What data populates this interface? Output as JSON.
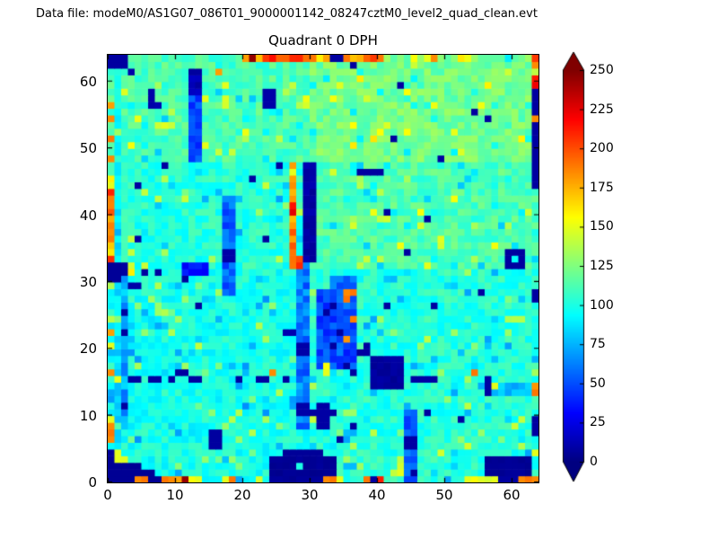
{
  "figure": {
    "header": "Data file: modeM0/AS1G07_086T01_9000001142_08247cztM0_level2_quad_clean.evt",
    "title": "Quadrant 0 DPH"
  },
  "chart_data": {
    "type": "heatmap",
    "title": "Quadrant 0 DPH",
    "grid": {
      "nx": 64,
      "ny": 64
    },
    "xlim": [
      0,
      64
    ],
    "ylim": [
      0,
      64
    ],
    "x_ticks": [
      0,
      10,
      20,
      30,
      40,
      50,
      60
    ],
    "y_ticks": [
      0,
      10,
      20,
      30,
      40,
      50,
      60
    ],
    "colormap": "jet",
    "colorbar": {
      "vmin": 0,
      "vmax": 250,
      "ticks": [
        0,
        25,
        50,
        75,
        100,
        125,
        150,
        175,
        200,
        225,
        250
      ],
      "extend": "both"
    },
    "background": {
      "seed": 1337,
      "base": 103,
      "noise": 22,
      "speck_low_delta": -22,
      "speck_high_delta": 32,
      "top_band_y": 48,
      "top_band_delta": 9,
      "upper_right": {
        "x": 30,
        "y": 32,
        "delta": 10
      },
      "lower_left_delta": -4,
      "col1_delta": -12
    },
    "features": [
      [
        17,
        28,
        2,
        15,
        55,
        12
      ],
      [
        17,
        33,
        2,
        2,
        10,
        0
      ],
      [
        27,
        33,
        1,
        15,
        185,
        25
      ],
      [
        29,
        33,
        2,
        15,
        9,
        4
      ],
      [
        28,
        8,
        2,
        25,
        62,
        15
      ],
      [
        28,
        19,
        2,
        2,
        10,
        0
      ],
      [
        28,
        10,
        2,
        2,
        10,
        0
      ],
      [
        26,
        22,
        2,
        1,
        12,
        0
      ],
      [
        12,
        48,
        2,
        10,
        48,
        10
      ],
      [
        12,
        58,
        2,
        4,
        12,
        6
      ],
      [
        0,
        62,
        3,
        2,
        8,
        0
      ],
      [
        3,
        61,
        1,
        1,
        10,
        0
      ],
      [
        6,
        56,
        1,
        3,
        10,
        0
      ],
      [
        7,
        56,
        1,
        1,
        12,
        0
      ],
      [
        23,
        56,
        2,
        3,
        10,
        0
      ],
      [
        20,
        63,
        13,
        1,
        200,
        28
      ],
      [
        35,
        63,
        6,
        1,
        185,
        22
      ],
      [
        33,
        63,
        2,
        1,
        8,
        0
      ],
      [
        36,
        62,
        1,
        1,
        8,
        0
      ],
      [
        63,
        59,
        1,
        2,
        215,
        10
      ],
      [
        63,
        55,
        1,
        4,
        8,
        0
      ],
      [
        63,
        44,
        1,
        10,
        8,
        0
      ],
      [
        37,
        46,
        4,
        1,
        8,
        0
      ],
      [
        0,
        33,
        1,
        11,
        190,
        30
      ],
      [
        0,
        30,
        2,
        3,
        6,
        0
      ],
      [
        2,
        31,
        1,
        2,
        8,
        0
      ],
      [
        3,
        29,
        2,
        1,
        10,
        0
      ],
      [
        2,
        8,
        1,
        22,
        72,
        14
      ],
      [
        31,
        17,
        6,
        12,
        50,
        14
      ],
      [
        33,
        28,
        4,
        3,
        55,
        12
      ],
      [
        39,
        14,
        5,
        5,
        7,
        3
      ],
      [
        45,
        15,
        4,
        1,
        9,
        0
      ],
      [
        56,
        13,
        1,
        3,
        9,
        0
      ],
      [
        57,
        13,
        7,
        2,
        78,
        10
      ],
      [
        63,
        27,
        1,
        2,
        8,
        0
      ],
      [
        63,
        7,
        1,
        3,
        8,
        0
      ],
      [
        24,
        0,
        10,
        4,
        5,
        2
      ],
      [
        26,
        4,
        6,
        1,
        6,
        0
      ],
      [
        0,
        0,
        9,
        1,
        5,
        0
      ],
      [
        0,
        1,
        7,
        1,
        5,
        0
      ],
      [
        0,
        2,
        5,
        1,
        5,
        0
      ],
      [
        0,
        3,
        3,
        1,
        5,
        0
      ],
      [
        0,
        4,
        2,
        1,
        6,
        0
      ],
      [
        56,
        1,
        7,
        3,
        5,
        2
      ],
      [
        15,
        5,
        2,
        3,
        8,
        0
      ],
      [
        31,
        8,
        2,
        4,
        9,
        0
      ],
      [
        44,
        0,
        2,
        11,
        58,
        14
      ],
      [
        44,
        5,
        2,
        2,
        9,
        0
      ],
      [
        59,
        32,
        3,
        3,
        8,
        0
      ],
      [
        11,
        31,
        4,
        2,
        38,
        10
      ]
    ],
    "navy_cells": [
      [
        8,
        47
      ],
      [
        25,
        47
      ],
      [
        21,
        45
      ],
      [
        4,
        44
      ],
      [
        43,
        59
      ],
      [
        54,
        55
      ],
      [
        56,
        54
      ],
      [
        42,
        51
      ],
      [
        49,
        48
      ],
      [
        23,
        36
      ],
      [
        4,
        36
      ],
      [
        11,
        30
      ],
      [
        47,
        39
      ],
      [
        41,
        40
      ],
      [
        44,
        34
      ],
      [
        55,
        28
      ],
      [
        41,
        26
      ],
      [
        48,
        26
      ],
      [
        13,
        26
      ],
      [
        2,
        25
      ],
      [
        2,
        22
      ],
      [
        2,
        11
      ],
      [
        5,
        31
      ],
      [
        7,
        31
      ],
      [
        37,
        19
      ],
      [
        38,
        20
      ],
      [
        38,
        19
      ],
      [
        32,
        25
      ],
      [
        34,
        22
      ],
      [
        33,
        20
      ],
      [
        35,
        17
      ],
      [
        33,
        26
      ],
      [
        36,
        16
      ],
      [
        30,
        10
      ],
      [
        33,
        10
      ],
      [
        45,
        1
      ],
      [
        39,
        0
      ],
      [
        58,
        0
      ],
      [
        59,
        0
      ],
      [
        60,
        0
      ],
      [
        3,
        15
      ],
      [
        4,
        15
      ],
      [
        6,
        15
      ],
      [
        7,
        15
      ],
      [
        9,
        15
      ],
      [
        12,
        15
      ],
      [
        13,
        15
      ],
      [
        19,
        15
      ],
      [
        22,
        15
      ],
      [
        23,
        15
      ],
      [
        26,
        15
      ],
      [
        10,
        16
      ],
      [
        11,
        16
      ],
      [
        36,
        8
      ],
      [
        34,
        6
      ],
      [
        52,
        9
      ],
      [
        47,
        10
      ]
    ],
    "hot_cells": [
      [
        21,
        63,
        245
      ],
      [
        23,
        63,
        205
      ],
      [
        26,
        63,
        195
      ],
      [
        28,
        63,
        210
      ],
      [
        30,
        63,
        190
      ],
      [
        31,
        63,
        160
      ],
      [
        35,
        63,
        190
      ],
      [
        39,
        63,
        205
      ],
      [
        45,
        63,
        155
      ],
      [
        47,
        63,
        150
      ],
      [
        48,
        63,
        185
      ],
      [
        63,
        63,
        205
      ],
      [
        63,
        62,
        185
      ],
      [
        63,
        61,
        140
      ],
      [
        16,
        61,
        180
      ],
      [
        63,
        54,
        185
      ],
      [
        0,
        56,
        180
      ],
      [
        0,
        54,
        185
      ],
      [
        0,
        51,
        190
      ],
      [
        0,
        48,
        185
      ],
      [
        0,
        45,
        160
      ],
      [
        0,
        44,
        150
      ],
      [
        27,
        40,
        225
      ],
      [
        27,
        41,
        215
      ],
      [
        27,
        46,
        150
      ],
      [
        27,
        34,
        190
      ],
      [
        28,
        32,
        210
      ],
      [
        27,
        32,
        190
      ],
      [
        28,
        33,
        200
      ],
      [
        3,
        31,
        160
      ],
      [
        0,
        22,
        180
      ],
      [
        0,
        20,
        150
      ],
      [
        0,
        16,
        185
      ],
      [
        1,
        15,
        150
      ],
      [
        24,
        16,
        185
      ],
      [
        0,
        9,
        150
      ],
      [
        0,
        8,
        185
      ],
      [
        0,
        7,
        190
      ],
      [
        0,
        6,
        185
      ],
      [
        1,
        3,
        150
      ],
      [
        2,
        3,
        148
      ],
      [
        1,
        4,
        150
      ],
      [
        35,
        27,
        190
      ],
      [
        36,
        24,
        188
      ],
      [
        35,
        21,
        182
      ],
      [
        36,
        28,
        190
      ],
      [
        35,
        28,
        185
      ],
      [
        32,
        17,
        155
      ],
      [
        32,
        16,
        150
      ],
      [
        54,
        16,
        190
      ],
      [
        57,
        14,
        150
      ],
      [
        63,
        13,
        190
      ],
      [
        63,
        14,
        182
      ],
      [
        63,
        4,
        150
      ],
      [
        63,
        0,
        185
      ],
      [
        62,
        0,
        190
      ],
      [
        61,
        0,
        185
      ],
      [
        4,
        0,
        185
      ],
      [
        5,
        0,
        190
      ],
      [
        8,
        0,
        190
      ],
      [
        9,
        0,
        185
      ],
      [
        10,
        0,
        178
      ],
      [
        11,
        0,
        245
      ],
      [
        12,
        0,
        155
      ],
      [
        13,
        0,
        150
      ],
      [
        17,
        0,
        150
      ],
      [
        18,
        0,
        190
      ],
      [
        22,
        0,
        145
      ],
      [
        32,
        0,
        185
      ],
      [
        33,
        0,
        190
      ],
      [
        34,
        0,
        150
      ],
      [
        38,
        0,
        190
      ],
      [
        40,
        0,
        212
      ],
      [
        43,
        1,
        150
      ],
      [
        43,
        2,
        145
      ],
      [
        43,
        3,
        140
      ],
      [
        53,
        0,
        150
      ],
      [
        54,
        0,
        155
      ],
      [
        55,
        0,
        148
      ],
      [
        56,
        0,
        145
      ],
      [
        57,
        0,
        150
      ],
      [
        60,
        33,
        95
      ],
      [
        28,
        2,
        100
      ]
    ]
  }
}
